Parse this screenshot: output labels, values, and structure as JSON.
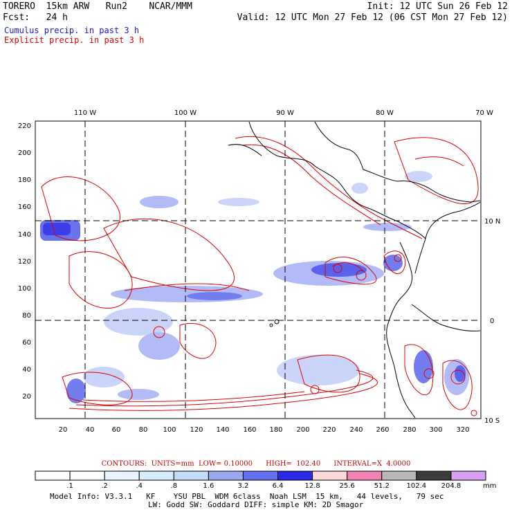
{
  "header": {
    "model_label": "TORERO  15km ARW   Run2    NCAR/MMM",
    "init_label": "Init: 12 UTC Sun 26 Feb 12",
    "fcst_label": "Fcst:   24 h",
    "valid_label": "Valid: 12 UTC Mon 27 Feb 12 (06 CST Mon 27 Feb 12)",
    "cumulus_label": "Cumulus precip. in past 3 h",
    "explicit_label": "Explicit precip. in past 3 h"
  },
  "colors": {
    "cumulus": "#0000cc",
    "explicit": "#dd0000",
    "contour": "#dd0000"
  },
  "map": {
    "top_ticks": [
      "110 W",
      "100 W",
      "90 W",
      "80 W",
      "70 W"
    ],
    "right_ticks": [
      "10 N",
      "0",
      "10 S"
    ],
    "y_ticks": [
      "220",
      "200",
      "180",
      "160",
      "140",
      "120",
      "100",
      "80",
      "60",
      "40",
      "20"
    ],
    "x_ticks": [
      "20",
      "40",
      "60",
      "80",
      "100",
      "120",
      "140",
      "160",
      "180",
      "200",
      "220",
      "240",
      "260",
      "280",
      "300",
      "320"
    ]
  },
  "contours_line": "CONTOURS:  UNITS=mm  LOW= 0.10000      HIGH=  102.40      INTERVAL=X  4.0000",
  "colorbar": {
    "labels": [
      ".1",
      ".2",
      ".4",
      ".8",
      "1.6",
      "3.2",
      "6.4",
      "12.8",
      "25.6",
      "51.2",
      "102.4",
      "204.8"
    ],
    "unit": "mm",
    "colors": [
      "#ffffff",
      "#ffffff",
      "#e8f4ff",
      "#d6eefc",
      "#c4dcf8",
      "#9aa8f0",
      "#6670ee",
      "#2a2ae6",
      "#fcdada",
      "#f282b4",
      "#b8b8b8",
      "#3c3c3c",
      "#d8a0f4"
    ]
  },
  "model_info": {
    "line1": "Model Info: V3.3.1   KF    YSU PBL  WDM 6class  Noah LSM  15 km,   44 levels,   79 sec",
    "line2": "LW: Godd SW: Goddard DIFF: simple KM: 2D Smagor"
  }
}
